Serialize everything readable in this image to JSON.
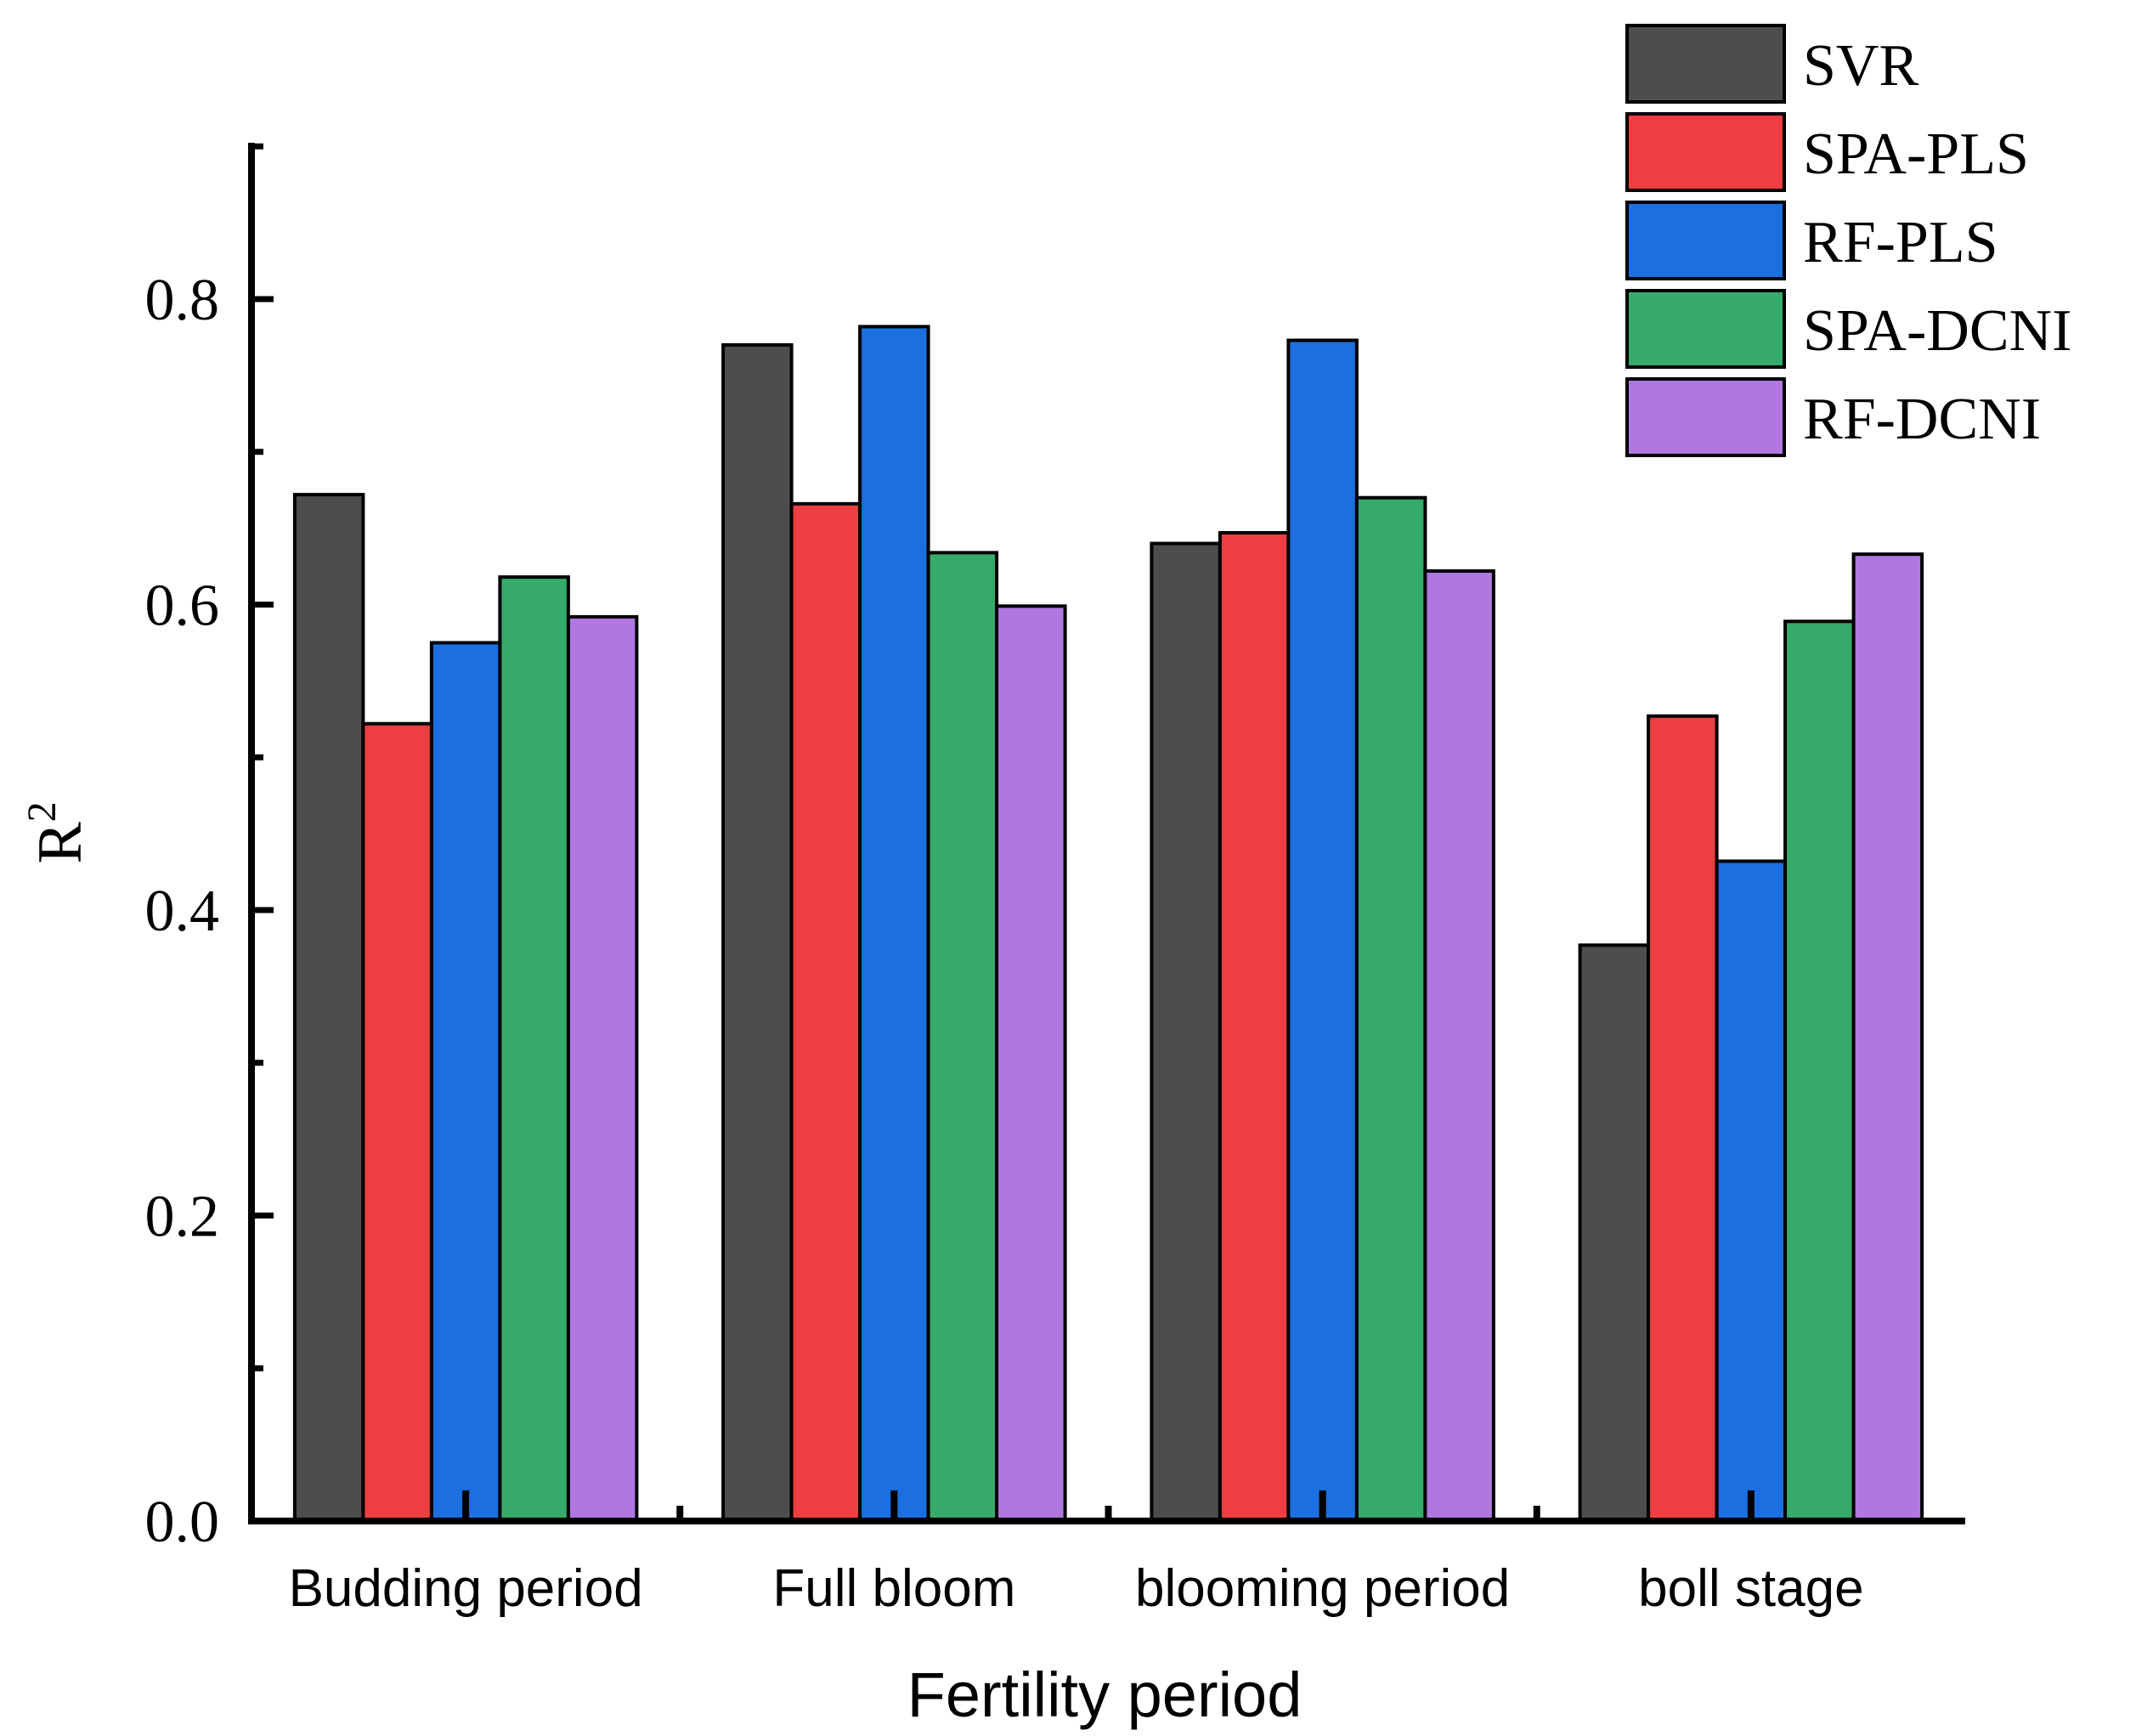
{
  "chart_data": {
    "type": "bar",
    "title": "",
    "xlabel": "Fertility period",
    "ylabel": "R",
    "ylabel_superscript": "2",
    "ylim": [
      0,
      0.9
    ],
    "yticks": [
      "0.0",
      "0.2",
      "0.4",
      "0.6",
      "0.8"
    ],
    "ytick_values": [
      0.0,
      0.2,
      0.4,
      0.6,
      0.8
    ],
    "categories": [
      "Budding period",
      "Full bloom",
      "blooming period",
      "boll stage"
    ],
    "legend_position": "top-right",
    "series": [
      {
        "name": "SVR",
        "color": "#4d4d4d",
        "values": [
          0.672,
          0.77,
          0.64,
          0.377
        ]
      },
      {
        "name": "SPA-PLS",
        "color": "#ef3e41",
        "values": [
          0.522,
          0.666,
          0.647,
          0.527
        ]
      },
      {
        "name": "RF-PLS",
        "color": "#1b6fe0",
        "values": [
          0.575,
          0.782,
          0.773,
          0.432
        ]
      },
      {
        "name": "SPA-DCNI",
        "color": "#36aa6a",
        "values": [
          0.618,
          0.634,
          0.67,
          0.589
        ]
      },
      {
        "name": "RF-DCNI",
        "color": "#b077e0",
        "values": [
          0.592,
          0.599,
          0.622,
          0.633
        ]
      }
    ]
  }
}
